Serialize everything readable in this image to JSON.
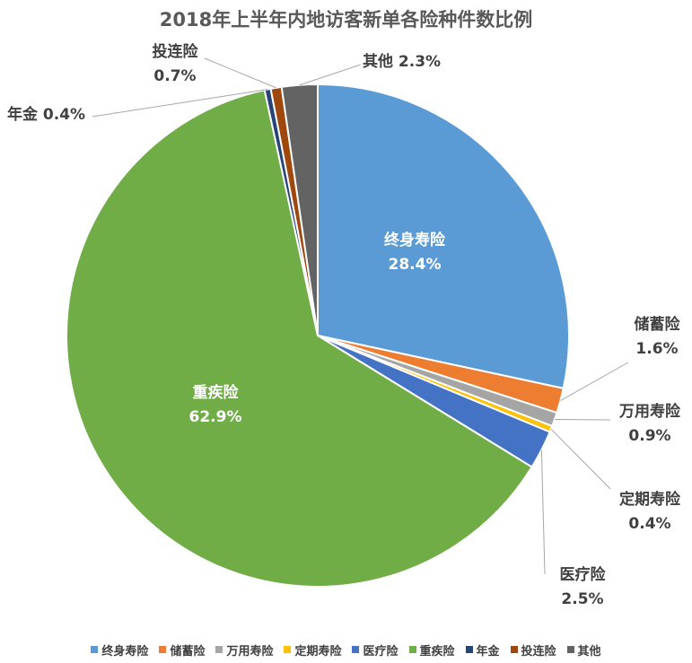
{
  "chart_data": {
    "type": "pie",
    "title": "2018年上半年内地访客新单各险种件数比例",
    "slices": [
      {
        "name": "终身寿险",
        "value": 28.4,
        "label": "28.4%",
        "color": "#5B9BD5"
      },
      {
        "name": "储蓄险",
        "value": 1.6,
        "label": "1.6%",
        "color": "#ED7D31"
      },
      {
        "name": "万用寿险",
        "value": 0.9,
        "label": "0.9%",
        "color": "#A5A5A5"
      },
      {
        "name": "定期寿险",
        "value": 0.4,
        "label": "0.4%",
        "color": "#FFC000"
      },
      {
        "name": "医疗险",
        "value": 2.5,
        "label": "2.5%",
        "color": "#4472C4"
      },
      {
        "name": "重疾险",
        "value": 62.9,
        "label": "62.9%",
        "color": "#70AD47"
      },
      {
        "name": "年金",
        "value": 0.4,
        "label": "0.4%",
        "color": "#264478"
      },
      {
        "name": "投连险",
        "value": 0.7,
        "label": "0.7%",
        "color": "#9E480E"
      },
      {
        "name": "其他",
        "value": 2.3,
        "label": "2.3%",
        "color": "#636363"
      }
    ],
    "legend_position": "bottom"
  }
}
